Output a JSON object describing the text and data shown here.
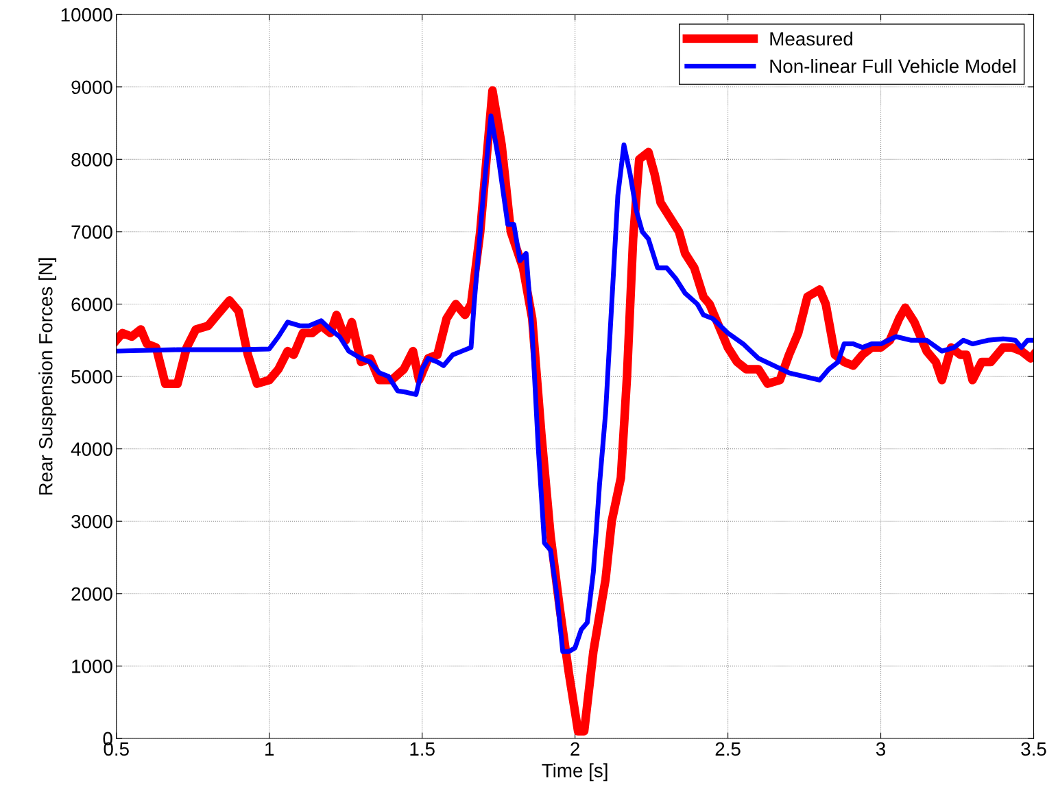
{
  "chart_data": {
    "type": "line",
    "xlabel": "Time [s]",
    "ylabel": "Rear Suspension Forces [N]",
    "xlim": [
      0.5,
      3.5
    ],
    "xticks": [
      0.5,
      1,
      1.5,
      2,
      2.5,
      3,
      3.5
    ],
    "ylim": [
      0,
      10000
    ],
    "yticks": [
      0,
      1000,
      2000,
      3000,
      4000,
      5000,
      6000,
      7000,
      8000,
      9000,
      10000
    ],
    "grid": true,
    "legend": "top right",
    "series": [
      {
        "name": "Measured",
        "color": "#ff0000",
        "x": [
          0.5,
          0.52,
          0.55,
          0.58,
          0.6,
          0.63,
          0.66,
          0.7,
          0.73,
          0.76,
          0.8,
          0.83,
          0.87,
          0.9,
          0.93,
          0.96,
          1.0,
          1.03,
          1.06,
          1.08,
          1.11,
          1.14,
          1.17,
          1.2,
          1.22,
          1.25,
          1.27,
          1.3,
          1.33,
          1.36,
          1.4,
          1.44,
          1.47,
          1.49,
          1.52,
          1.55,
          1.58,
          1.61,
          1.64,
          1.66,
          1.69,
          1.73,
          1.76,
          1.79,
          1.83,
          1.86,
          1.89,
          1.92,
          1.95,
          1.98,
          2.01,
          2.03,
          2.06,
          2.08,
          2.1,
          2.12,
          2.15,
          2.17,
          2.19,
          2.21,
          2.24,
          2.26,
          2.28,
          2.31,
          2.34,
          2.36,
          2.39,
          2.42,
          2.44,
          2.47,
          2.5,
          2.53,
          2.56,
          2.6,
          2.63,
          2.67,
          2.7,
          2.73,
          2.76,
          2.8,
          2.82,
          2.85,
          2.88,
          2.91,
          2.94,
          2.97,
          3.0,
          3.03,
          3.06,
          3.08,
          3.11,
          3.15,
          3.18,
          3.2,
          3.23,
          3.26,
          3.28,
          3.3,
          3.33,
          3.36,
          3.4,
          3.43,
          3.46,
          3.49,
          3.5
        ],
        "values": [
          5500,
          5600,
          5550,
          5650,
          5450,
          5400,
          4900,
          4900,
          5400,
          5650,
          5700,
          5850,
          6050,
          5900,
          5300,
          4900,
          4950,
          5100,
          5350,
          5300,
          5600,
          5600,
          5700,
          5600,
          5850,
          5500,
          5750,
          5200,
          5250,
          4950,
          4950,
          5100,
          5350,
          4950,
          5250,
          5300,
          5800,
          6000,
          5850,
          6000,
          7000,
          8950,
          8200,
          7000,
          6500,
          5800,
          4200,
          2800,
          1800,
          900,
          100,
          100,
          1200,
          1700,
          2200,
          3000,
          3600,
          5000,
          6900,
          8000,
          8100,
          7800,
          7400,
          7200,
          7000,
          6700,
          6500,
          6100,
          6000,
          5700,
          5400,
          5200,
          5100,
          5100,
          4900,
          4950,
          5300,
          5600,
          6100,
          6200,
          6000,
          5300,
          5200,
          5150,
          5300,
          5400,
          5400,
          5500,
          5800,
          5950,
          5750,
          5350,
          5200,
          4950,
          5400,
          5300,
          5300,
          4950,
          5200,
          5200,
          5400,
          5400,
          5350,
          5250,
          5300
        ]
      },
      {
        "name": "Non-linear Full Vehicle Model",
        "color": "#0000ff",
        "x": [
          0.5,
          0.7,
          0.9,
          1.0,
          1.03,
          1.06,
          1.1,
          1.13,
          1.17,
          1.2,
          1.23,
          1.26,
          1.3,
          1.33,
          1.36,
          1.39,
          1.42,
          1.45,
          1.48,
          1.5,
          1.52,
          1.55,
          1.57,
          1.6,
          1.63,
          1.66,
          1.67,
          1.7,
          1.725,
          1.75,
          1.78,
          1.8,
          1.82,
          1.84,
          1.86,
          1.88,
          1.9,
          1.92,
          1.94,
          1.96,
          1.98,
          2.0,
          2.02,
          2.04,
          2.06,
          2.08,
          2.1,
          2.12,
          2.14,
          2.16,
          2.18,
          2.2,
          2.22,
          2.24,
          2.27,
          2.3,
          2.33,
          2.36,
          2.4,
          2.42,
          2.45,
          2.5,
          2.55,
          2.6,
          2.65,
          2.7,
          2.75,
          2.8,
          2.83,
          2.86,
          2.88,
          2.91,
          2.94,
          2.97,
          3.0,
          3.05,
          3.1,
          3.15,
          3.2,
          3.24,
          3.27,
          3.3,
          3.35,
          3.4,
          3.44,
          3.46,
          3.48,
          3.5
        ],
        "values": [
          5350,
          5370,
          5370,
          5380,
          5550,
          5750,
          5700,
          5700,
          5770,
          5650,
          5550,
          5350,
          5250,
          5200,
          5050,
          5000,
          4800,
          4780,
          4750,
          5100,
          5250,
          5200,
          5150,
          5300,
          5350,
          5400,
          6000,
          7500,
          8600,
          8000,
          7100,
          7100,
          6600,
          6700,
          5600,
          4000,
          2700,
          2600,
          2000,
          1200,
          1200,
          1250,
          1500,
          1600,
          2300,
          3500,
          4500,
          6000,
          7500,
          8200,
          7800,
          7300,
          7000,
          6900,
          6500,
          6500,
          6350,
          6150,
          6000,
          5850,
          5800,
          5600,
          5450,
          5250,
          5150,
          5050,
          5000,
          4950,
          5100,
          5200,
          5450,
          5450,
          5400,
          5450,
          5450,
          5550,
          5500,
          5500,
          5350,
          5400,
          5500,
          5450,
          5500,
          5520,
          5500,
          5400,
          5500,
          5500
        ]
      }
    ]
  }
}
